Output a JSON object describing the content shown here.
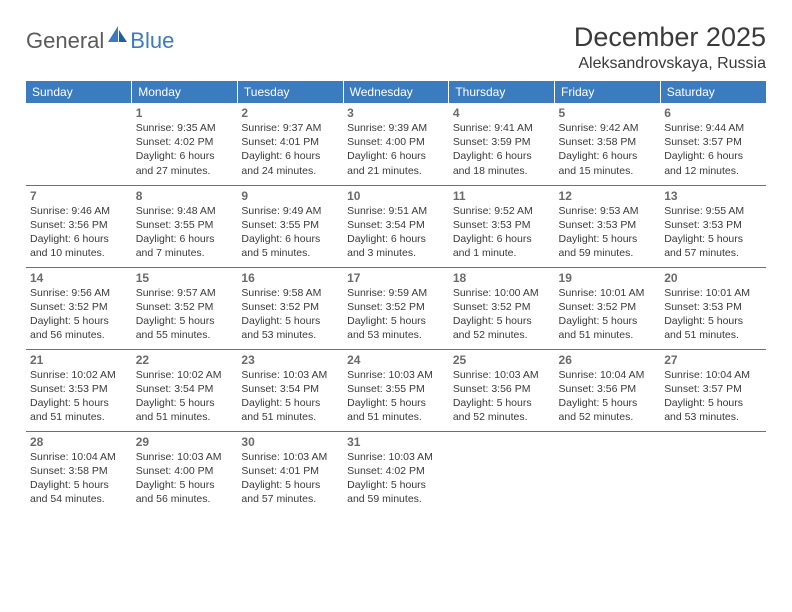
{
  "logo": {
    "text1": "General",
    "text2": "Blue"
  },
  "title": "December 2025",
  "location": "Aleksandrovskaya, Russia",
  "colors": {
    "header_bg": "#3b7bbf",
    "header_text": "#ffffff",
    "daynum": "#6a6a6a",
    "text": "#3a3a3a",
    "row_border": "#3b7bbf",
    "logo_gray": "#5a5a5a",
    "logo_blue": "#3b7bbf"
  },
  "weekdays": [
    "Sunday",
    "Monday",
    "Tuesday",
    "Wednesday",
    "Thursday",
    "Friday",
    "Saturday"
  ],
  "first_weekday_index": 1,
  "days": [
    {
      "n": 1,
      "sunrise": "9:35 AM",
      "sunset": "4:02 PM",
      "daylight": "6 hours and 27 minutes."
    },
    {
      "n": 2,
      "sunrise": "9:37 AM",
      "sunset": "4:01 PM",
      "daylight": "6 hours and 24 minutes."
    },
    {
      "n": 3,
      "sunrise": "9:39 AM",
      "sunset": "4:00 PM",
      "daylight": "6 hours and 21 minutes."
    },
    {
      "n": 4,
      "sunrise": "9:41 AM",
      "sunset": "3:59 PM",
      "daylight": "6 hours and 18 minutes."
    },
    {
      "n": 5,
      "sunrise": "9:42 AM",
      "sunset": "3:58 PM",
      "daylight": "6 hours and 15 minutes."
    },
    {
      "n": 6,
      "sunrise": "9:44 AM",
      "sunset": "3:57 PM",
      "daylight": "6 hours and 12 minutes."
    },
    {
      "n": 7,
      "sunrise": "9:46 AM",
      "sunset": "3:56 PM",
      "daylight": "6 hours and 10 minutes."
    },
    {
      "n": 8,
      "sunrise": "9:48 AM",
      "sunset": "3:55 PM",
      "daylight": "6 hours and 7 minutes."
    },
    {
      "n": 9,
      "sunrise": "9:49 AM",
      "sunset": "3:55 PM",
      "daylight": "6 hours and 5 minutes."
    },
    {
      "n": 10,
      "sunrise": "9:51 AM",
      "sunset": "3:54 PM",
      "daylight": "6 hours and 3 minutes."
    },
    {
      "n": 11,
      "sunrise": "9:52 AM",
      "sunset": "3:53 PM",
      "daylight": "6 hours and 1 minute."
    },
    {
      "n": 12,
      "sunrise": "9:53 AM",
      "sunset": "3:53 PM",
      "daylight": "5 hours and 59 minutes."
    },
    {
      "n": 13,
      "sunrise": "9:55 AM",
      "sunset": "3:53 PM",
      "daylight": "5 hours and 57 minutes."
    },
    {
      "n": 14,
      "sunrise": "9:56 AM",
      "sunset": "3:52 PM",
      "daylight": "5 hours and 56 minutes."
    },
    {
      "n": 15,
      "sunrise": "9:57 AM",
      "sunset": "3:52 PM",
      "daylight": "5 hours and 55 minutes."
    },
    {
      "n": 16,
      "sunrise": "9:58 AM",
      "sunset": "3:52 PM",
      "daylight": "5 hours and 53 minutes."
    },
    {
      "n": 17,
      "sunrise": "9:59 AM",
      "sunset": "3:52 PM",
      "daylight": "5 hours and 53 minutes."
    },
    {
      "n": 18,
      "sunrise": "10:00 AM",
      "sunset": "3:52 PM",
      "daylight": "5 hours and 52 minutes."
    },
    {
      "n": 19,
      "sunrise": "10:01 AM",
      "sunset": "3:52 PM",
      "daylight": "5 hours and 51 minutes."
    },
    {
      "n": 20,
      "sunrise": "10:01 AM",
      "sunset": "3:53 PM",
      "daylight": "5 hours and 51 minutes."
    },
    {
      "n": 21,
      "sunrise": "10:02 AM",
      "sunset": "3:53 PM",
      "daylight": "5 hours and 51 minutes."
    },
    {
      "n": 22,
      "sunrise": "10:02 AM",
      "sunset": "3:54 PM",
      "daylight": "5 hours and 51 minutes."
    },
    {
      "n": 23,
      "sunrise": "10:03 AM",
      "sunset": "3:54 PM",
      "daylight": "5 hours and 51 minutes."
    },
    {
      "n": 24,
      "sunrise": "10:03 AM",
      "sunset": "3:55 PM",
      "daylight": "5 hours and 51 minutes."
    },
    {
      "n": 25,
      "sunrise": "10:03 AM",
      "sunset": "3:56 PM",
      "daylight": "5 hours and 52 minutes."
    },
    {
      "n": 26,
      "sunrise": "10:04 AM",
      "sunset": "3:56 PM",
      "daylight": "5 hours and 52 minutes."
    },
    {
      "n": 27,
      "sunrise": "10:04 AM",
      "sunset": "3:57 PM",
      "daylight": "5 hours and 53 minutes."
    },
    {
      "n": 28,
      "sunrise": "10:04 AM",
      "sunset": "3:58 PM",
      "daylight": "5 hours and 54 minutes."
    },
    {
      "n": 29,
      "sunrise": "10:03 AM",
      "sunset": "4:00 PM",
      "daylight": "5 hours and 56 minutes."
    },
    {
      "n": 30,
      "sunrise": "10:03 AM",
      "sunset": "4:01 PM",
      "daylight": "5 hours and 57 minutes."
    },
    {
      "n": 31,
      "sunrise": "10:03 AM",
      "sunset": "4:02 PM",
      "daylight": "5 hours and 59 minutes."
    }
  ],
  "labels": {
    "sunrise": "Sunrise:",
    "sunset": "Sunset:",
    "daylight": "Daylight:"
  }
}
